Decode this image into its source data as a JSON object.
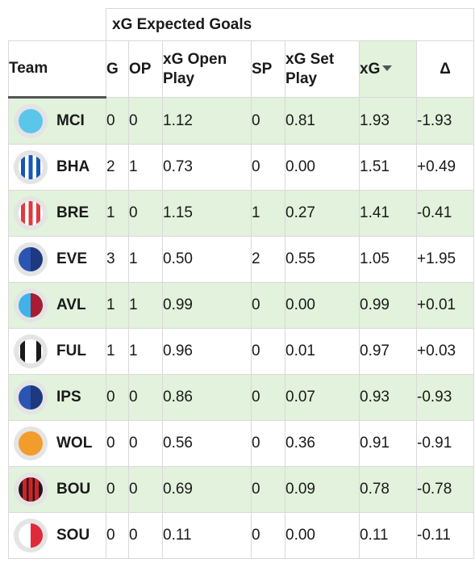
{
  "table": {
    "group_header": "xG Expected Goals",
    "columns": {
      "team": "Team",
      "g": "G",
      "op": "OP",
      "xg_open_play": "xG Open Play",
      "sp": "SP",
      "xg_set_play": "xG Set Play",
      "xg": "xG",
      "delta": "Δ"
    },
    "sorted_column": "xg",
    "rows": [
      {
        "team": "MCI",
        "icon": "mci-badge-icon",
        "g": "0",
        "op": "0",
        "xg_open_play": "1.12",
        "sp": "0",
        "xg_set_play": "0.81",
        "xg": "1.93",
        "delta": "-1.93"
      },
      {
        "team": "BHA",
        "icon": "bha-badge-icon",
        "g": "2",
        "op": "1",
        "xg_open_play": "0.73",
        "sp": "0",
        "xg_set_play": "0.00",
        "xg": "1.51",
        "delta": "+0.49"
      },
      {
        "team": "BRE",
        "icon": "bre-badge-icon",
        "g": "1",
        "op": "0",
        "xg_open_play": "1.15",
        "sp": "1",
        "xg_set_play": "0.27",
        "xg": "1.41",
        "delta": "-0.41"
      },
      {
        "team": "EVE",
        "icon": "eve-badge-icon",
        "g": "3",
        "op": "1",
        "xg_open_play": "0.50",
        "sp": "2",
        "xg_set_play": "0.55",
        "xg": "1.05",
        "delta": "+1.95"
      },
      {
        "team": "AVL",
        "icon": "avl-badge-icon",
        "g": "1",
        "op": "1",
        "xg_open_play": "0.99",
        "sp": "0",
        "xg_set_play": "0.00",
        "xg": "0.99",
        "delta": "+0.01"
      },
      {
        "team": "FUL",
        "icon": "ful-badge-icon",
        "g": "1",
        "op": "1",
        "xg_open_play": "0.96",
        "sp": "0",
        "xg_set_play": "0.01",
        "xg": "0.97",
        "delta": "+0.03"
      },
      {
        "team": "IPS",
        "icon": "ips-badge-icon",
        "g": "0",
        "op": "0",
        "xg_open_play": "0.86",
        "sp": "0",
        "xg_set_play": "0.07",
        "xg": "0.93",
        "delta": "-0.93"
      },
      {
        "team": "WOL",
        "icon": "wol-badge-icon",
        "g": "0",
        "op": "0",
        "xg_open_play": "0.56",
        "sp": "0",
        "xg_set_play": "0.36",
        "xg": "0.91",
        "delta": "-0.91"
      },
      {
        "team": "BOU",
        "icon": "bou-badge-icon",
        "g": "0",
        "op": "0",
        "xg_open_play": "0.69",
        "sp": "0",
        "xg_set_play": "0.09",
        "xg": "0.78",
        "delta": "-0.78"
      },
      {
        "team": "SOU",
        "icon": "sou-badge-icon",
        "g": "0",
        "op": "0",
        "xg_open_play": "0.11",
        "sp": "0",
        "xg_set_play": "0.00",
        "xg": "0.11",
        "delta": "-0.11"
      }
    ]
  },
  "colors": {
    "row_shade": "#e2f2dc",
    "header_rule": "#555555",
    "grid_line": "#d9d9d9"
  }
}
